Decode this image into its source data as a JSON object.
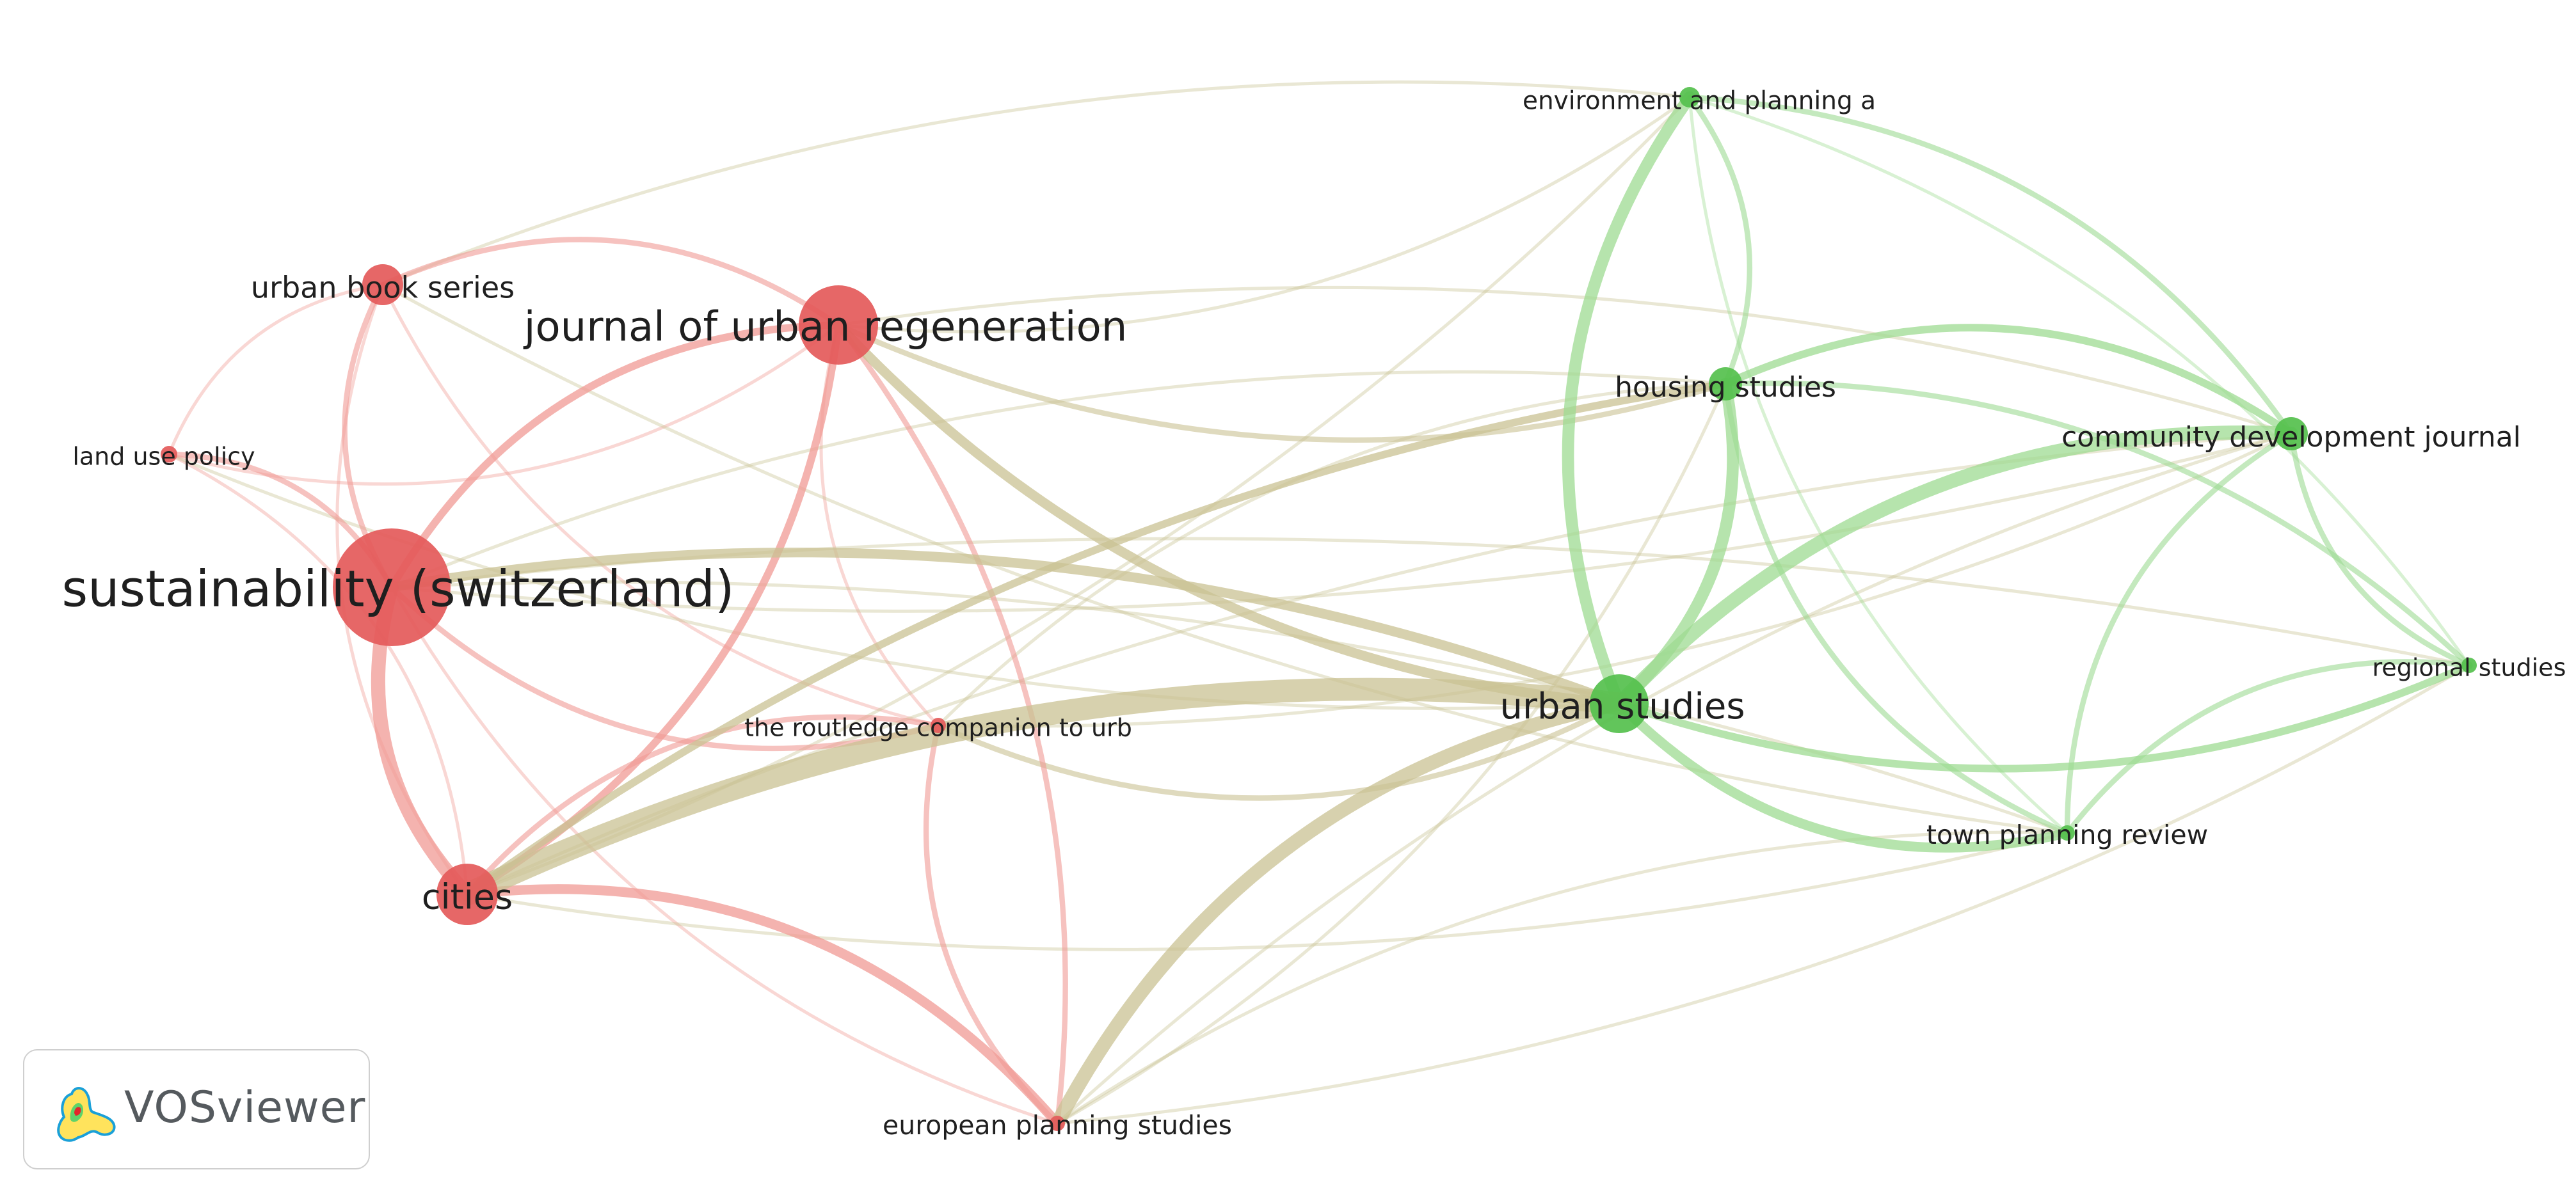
{
  "app": {
    "name": "VOSviewer"
  },
  "legend": {
    "logo_icon": "vosviewer-logo-icon"
  },
  "clusters": {
    "red": {
      "node_color": "#e45a5a",
      "edge_color": "#f09a94"
    },
    "green": {
      "node_color": "#55c04d",
      "edge_color": "#9ddb92"
    },
    "mixed_edge_color": "#c9c293"
  },
  "network": {
    "nodes": [
      {
        "id": "sustainability",
        "label": "sustainability (switzerland)",
        "cluster": "red",
        "weight": 10
      },
      {
        "id": "jur",
        "label": "journal of urban regeneration",
        "cluster": "red",
        "weight": 5
      },
      {
        "id": "ubs",
        "label": "urban book series",
        "cluster": "red",
        "weight": 2.5
      },
      {
        "id": "lup",
        "label": "land use policy",
        "cluster": "red",
        "weight": 1
      },
      {
        "id": "cities",
        "label": "cities",
        "cluster": "red",
        "weight": 3
      },
      {
        "id": "routledge",
        "label": "the routledge companion to urb",
        "cluster": "red",
        "weight": 1
      },
      {
        "id": "eps",
        "label": "european planning studies",
        "cluster": "red",
        "weight": 1
      },
      {
        "id": "us",
        "label": "urban studies",
        "cluster": "green",
        "weight": 4
      },
      {
        "id": "hs",
        "label": "housing studies",
        "cluster": "green",
        "weight": 2
      },
      {
        "id": "epa",
        "label": "environment and planning a",
        "cluster": "green",
        "weight": 1
      },
      {
        "id": "cdj",
        "label": "community development journal",
        "cluster": "green",
        "weight": 2
      },
      {
        "id": "rs",
        "label": "regional studies",
        "cluster": "green",
        "weight": 1
      },
      {
        "id": "tpr",
        "label": "town planning review",
        "cluster": "green",
        "weight": 1
      }
    ],
    "links": [
      {
        "source": "cities",
        "target": "us",
        "strength": 10
      },
      {
        "source": "us",
        "target": "eps",
        "strength": 6
      },
      {
        "source": "us",
        "target": "cdj",
        "strength": 6
      },
      {
        "source": "sustainability",
        "target": "cities",
        "strength": 6
      },
      {
        "source": "us",
        "target": "hs",
        "strength": 5
      },
      {
        "source": "us",
        "target": "epa",
        "strength": 5
      },
      {
        "source": "us",
        "target": "tpr",
        "strength": 4
      },
      {
        "source": "sustainability",
        "target": "us",
        "strength": 4
      },
      {
        "source": "jur",
        "target": "us",
        "strength": 4
      },
      {
        "source": "cities",
        "target": "eps",
        "strength": 4
      },
      {
        "source": "sustainability",
        "target": "jur",
        "strength": 3
      },
      {
        "source": "cities",
        "target": "jur",
        "strength": 3
      },
      {
        "source": "hs",
        "target": "cdj",
        "strength": 3
      },
      {
        "source": "us",
        "target": "rs",
        "strength": 3
      },
      {
        "source": "cities",
        "target": "hs",
        "strength": 3
      },
      {
        "source": "sustainability",
        "target": "ubs",
        "strength": 2
      },
      {
        "source": "sustainability",
        "target": "lup",
        "strength": 2
      },
      {
        "source": "ubs",
        "target": "jur",
        "strength": 2
      },
      {
        "source": "sustainability",
        "target": "routledge",
        "strength": 2
      },
      {
        "source": "cities",
        "target": "routledge",
        "strength": 2
      },
      {
        "source": "routledge",
        "target": "us",
        "strength": 2
      },
      {
        "source": "hs",
        "target": "rs",
        "strength": 2
      },
      {
        "source": "cdj",
        "target": "rs",
        "strength": 2
      },
      {
        "source": "tpr",
        "target": "rs",
        "strength": 2
      },
      {
        "source": "hs",
        "target": "tpr",
        "strength": 2
      },
      {
        "source": "epa",
        "target": "cdj",
        "strength": 2
      },
      {
        "source": "jur",
        "target": "hs",
        "strength": 2
      },
      {
        "source": "jur",
        "target": "eps",
        "strength": 2
      },
      {
        "source": "routledge",
        "target": "eps",
        "strength": 2
      },
      {
        "source": "epa",
        "target": "hs",
        "strength": 2
      },
      {
        "source": "cdj",
        "target": "tpr",
        "strength": 2
      },
      {
        "source": "ubs",
        "target": "cities",
        "strength": 1
      },
      {
        "source": "lup",
        "target": "ubs",
        "strength": 1
      },
      {
        "source": "lup",
        "target": "jur",
        "strength": 1
      },
      {
        "source": "ubs",
        "target": "epa",
        "strength": 1
      },
      {
        "source": "ubs",
        "target": "routledge",
        "strength": 1
      },
      {
        "source": "lup",
        "target": "cities",
        "strength": 1
      },
      {
        "source": "jur",
        "target": "epa",
        "strength": 1
      },
      {
        "source": "jur",
        "target": "cdj",
        "strength": 1
      },
      {
        "source": "jur",
        "target": "routledge",
        "strength": 1
      },
      {
        "source": "sustainability",
        "target": "hs",
        "strength": 1
      },
      {
        "source": "sustainability",
        "target": "eps",
        "strength": 1
      },
      {
        "source": "sustainability",
        "target": "tpr",
        "strength": 1
      },
      {
        "source": "sustainability",
        "target": "cdj",
        "strength": 1
      },
      {
        "source": "sustainability",
        "target": "rs",
        "strength": 1
      },
      {
        "source": "cities",
        "target": "tpr",
        "strength": 1
      },
      {
        "source": "cities",
        "target": "cdj",
        "strength": 1
      },
      {
        "source": "cities",
        "target": "epa",
        "strength": 1
      },
      {
        "source": "routledge",
        "target": "hs",
        "strength": 1
      },
      {
        "source": "routledge",
        "target": "cdj",
        "strength": 1
      },
      {
        "source": "eps",
        "target": "tpr",
        "strength": 1
      },
      {
        "source": "eps",
        "target": "rs",
        "strength": 1
      },
      {
        "source": "eps",
        "target": "cdj",
        "strength": 1
      },
      {
        "source": "eps",
        "target": "hs",
        "strength": 1
      },
      {
        "source": "epa",
        "target": "rs",
        "strength": 1
      },
      {
        "source": "epa",
        "target": "tpr",
        "strength": 1
      },
      {
        "source": "tpr",
        "target": "ubs",
        "strength": 1
      },
      {
        "source": "lup",
        "target": "us",
        "strength": 1
      }
    ]
  }
}
